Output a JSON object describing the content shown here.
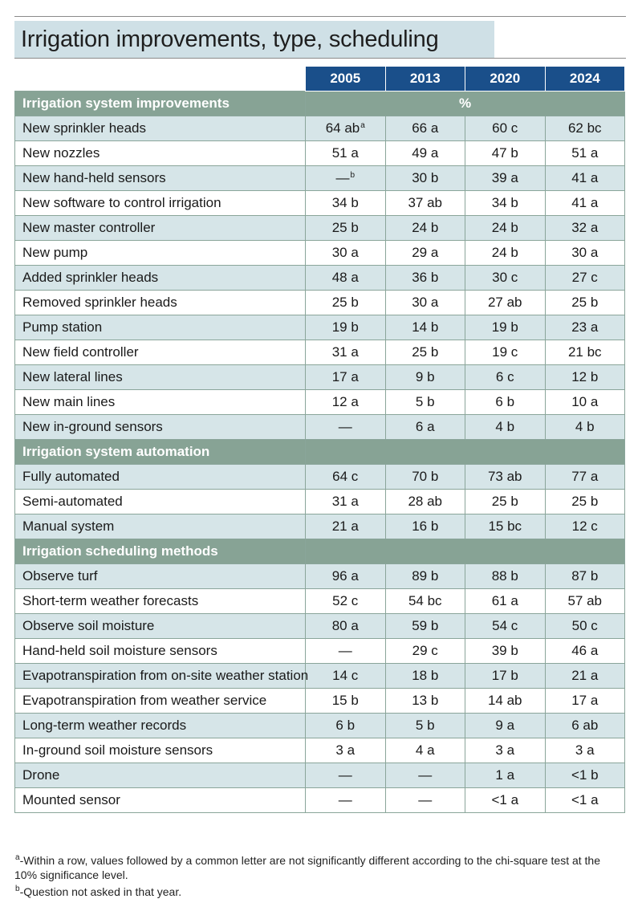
{
  "title": "Irrigation improvements, type, scheduling",
  "years": [
    "2005",
    "2013",
    "2020",
    "2024"
  ],
  "sections": [
    {
      "heading": "Irrigation system improvements",
      "unit": "%",
      "rows": [
        {
          "label": "New sprinkler heads",
          "values": [
            "64 ab",
            "66 a",
            "60 c",
            "62 bc"
          ],
          "sup": [
            "a",
            "",
            "",
            ""
          ]
        },
        {
          "label": "New nozzles",
          "values": [
            "51 a",
            "49 a",
            "47 b",
            "51 a"
          ],
          "sup": [
            "",
            "",
            "",
            ""
          ]
        },
        {
          "label": "New hand-held sensors",
          "values": [
            "—",
            "30 b",
            "39 a",
            "41 a"
          ],
          "sup": [
            "b",
            "",
            "",
            ""
          ]
        },
        {
          "label": "New software to control irrigation",
          "values": [
            "34 b",
            "37 ab",
            "34 b",
            "41 a"
          ],
          "sup": [
            "",
            "",
            "",
            ""
          ]
        },
        {
          "label": "New master controller",
          "values": [
            "25 b",
            "24 b",
            "24 b",
            "32 a"
          ],
          "sup": [
            "",
            "",
            "",
            ""
          ]
        },
        {
          "label": "New pump",
          "values": [
            "30 a",
            "29 a",
            "24 b",
            "30 a"
          ],
          "sup": [
            "",
            "",
            "",
            ""
          ]
        },
        {
          "label": "Added sprinkler heads",
          "values": [
            "48 a",
            "36 b",
            "30 c",
            "27 c"
          ],
          "sup": [
            "",
            "",
            "",
            ""
          ]
        },
        {
          "label": "Removed sprinkler heads",
          "values": [
            "25 b",
            "30 a",
            "27 ab",
            "25 b"
          ],
          "sup": [
            "",
            "",
            "",
            ""
          ]
        },
        {
          "label": "Pump station",
          "values": [
            "19 b",
            "14 b",
            "19 b",
            "23 a"
          ],
          "sup": [
            "",
            "",
            "",
            ""
          ]
        },
        {
          "label": "New field controller",
          "values": [
            "31 a",
            "25 b",
            "19 c",
            "21 bc"
          ],
          "sup": [
            "",
            "",
            "",
            ""
          ]
        },
        {
          "label": "New lateral lines",
          "values": [
            "17 a",
            "9 b",
            "6 c",
            "12 b"
          ],
          "sup": [
            "",
            "",
            "",
            ""
          ]
        },
        {
          "label": "New main lines",
          "values": [
            "12 a",
            "5 b",
            "6 b",
            "10 a"
          ],
          "sup": [
            "",
            "",
            "",
            ""
          ]
        },
        {
          "label": "New in-ground sensors",
          "values": [
            "—",
            "6 a",
            "4 b",
            "4 b"
          ],
          "sup": [
            "",
            "",
            "",
            ""
          ]
        }
      ]
    },
    {
      "heading": "Irrigation system automation",
      "unit": "",
      "rows": [
        {
          "label": "Fully automated",
          "values": [
            "64 c",
            "70 b",
            "73 ab",
            "77 a"
          ],
          "sup": [
            "",
            "",
            "",
            ""
          ]
        },
        {
          "label": "Semi-automated",
          "values": [
            "31 a",
            "28 ab",
            "25 b",
            "25 b"
          ],
          "sup": [
            "",
            "",
            "",
            ""
          ]
        },
        {
          "label": "Manual system",
          "values": [
            "21 a",
            "16 b",
            "15 bc",
            "12 c"
          ],
          "sup": [
            "",
            "",
            "",
            ""
          ]
        }
      ]
    },
    {
      "heading": "Irrigation scheduling methods",
      "unit": "",
      "rows": [
        {
          "label": "Observe turf",
          "values": [
            "96 a",
            "89 b",
            "88 b",
            "87 b"
          ],
          "sup": [
            "",
            "",
            "",
            ""
          ]
        },
        {
          "label": "Short-term weather forecasts",
          "values": [
            "52 c",
            "54 bc",
            "61 a",
            "57 ab"
          ],
          "sup": [
            "",
            "",
            "",
            ""
          ]
        },
        {
          "label": "Observe soil moisture",
          "values": [
            "80 a",
            "59 b",
            "54 c",
            "50 c"
          ],
          "sup": [
            "",
            "",
            "",
            ""
          ]
        },
        {
          "label": "Hand-held soil moisture sensors",
          "values": [
            "—",
            "29 c",
            "39 b",
            "46 a"
          ],
          "sup": [
            "",
            "",
            "",
            ""
          ]
        },
        {
          "label": "Evapotranspiration from on-site weather station",
          "values": [
            "14 c",
            "18 b",
            "17 b",
            "21 a"
          ],
          "sup": [
            "",
            "",
            "",
            ""
          ]
        },
        {
          "label": "Evapotranspiration from weather service",
          "values": [
            "15 b",
            "13 b",
            "14 ab",
            "17 a"
          ],
          "sup": [
            "",
            "",
            "",
            ""
          ]
        },
        {
          "label": "Long-term weather records",
          "values": [
            "6 b",
            "5 b",
            "9 a",
            "6 ab"
          ],
          "sup": [
            "",
            "",
            "",
            ""
          ]
        },
        {
          "label": "In-ground soil moisture sensors",
          "values": [
            "3 a",
            "4 a",
            "3 a",
            "3 a"
          ],
          "sup": [
            "",
            "",
            "",
            ""
          ]
        },
        {
          "label": "Drone",
          "values": [
            "—",
            "—",
            "1 a",
            "<1 b"
          ],
          "sup": [
            "",
            "",
            "",
            ""
          ]
        },
        {
          "label": "Mounted sensor",
          "values": [
            "—",
            "—",
            "<1 a",
            "<1 a"
          ],
          "sup": [
            "",
            "",
            "",
            ""
          ]
        }
      ]
    }
  ],
  "footnotes": [
    {
      "marker": "a",
      "text": "-Within a row, values followed by a common letter are not significantly different according to the chi-square test at the 10% significance level."
    },
    {
      "marker": "b",
      "text": "-Question not asked in that year."
    }
  ]
}
